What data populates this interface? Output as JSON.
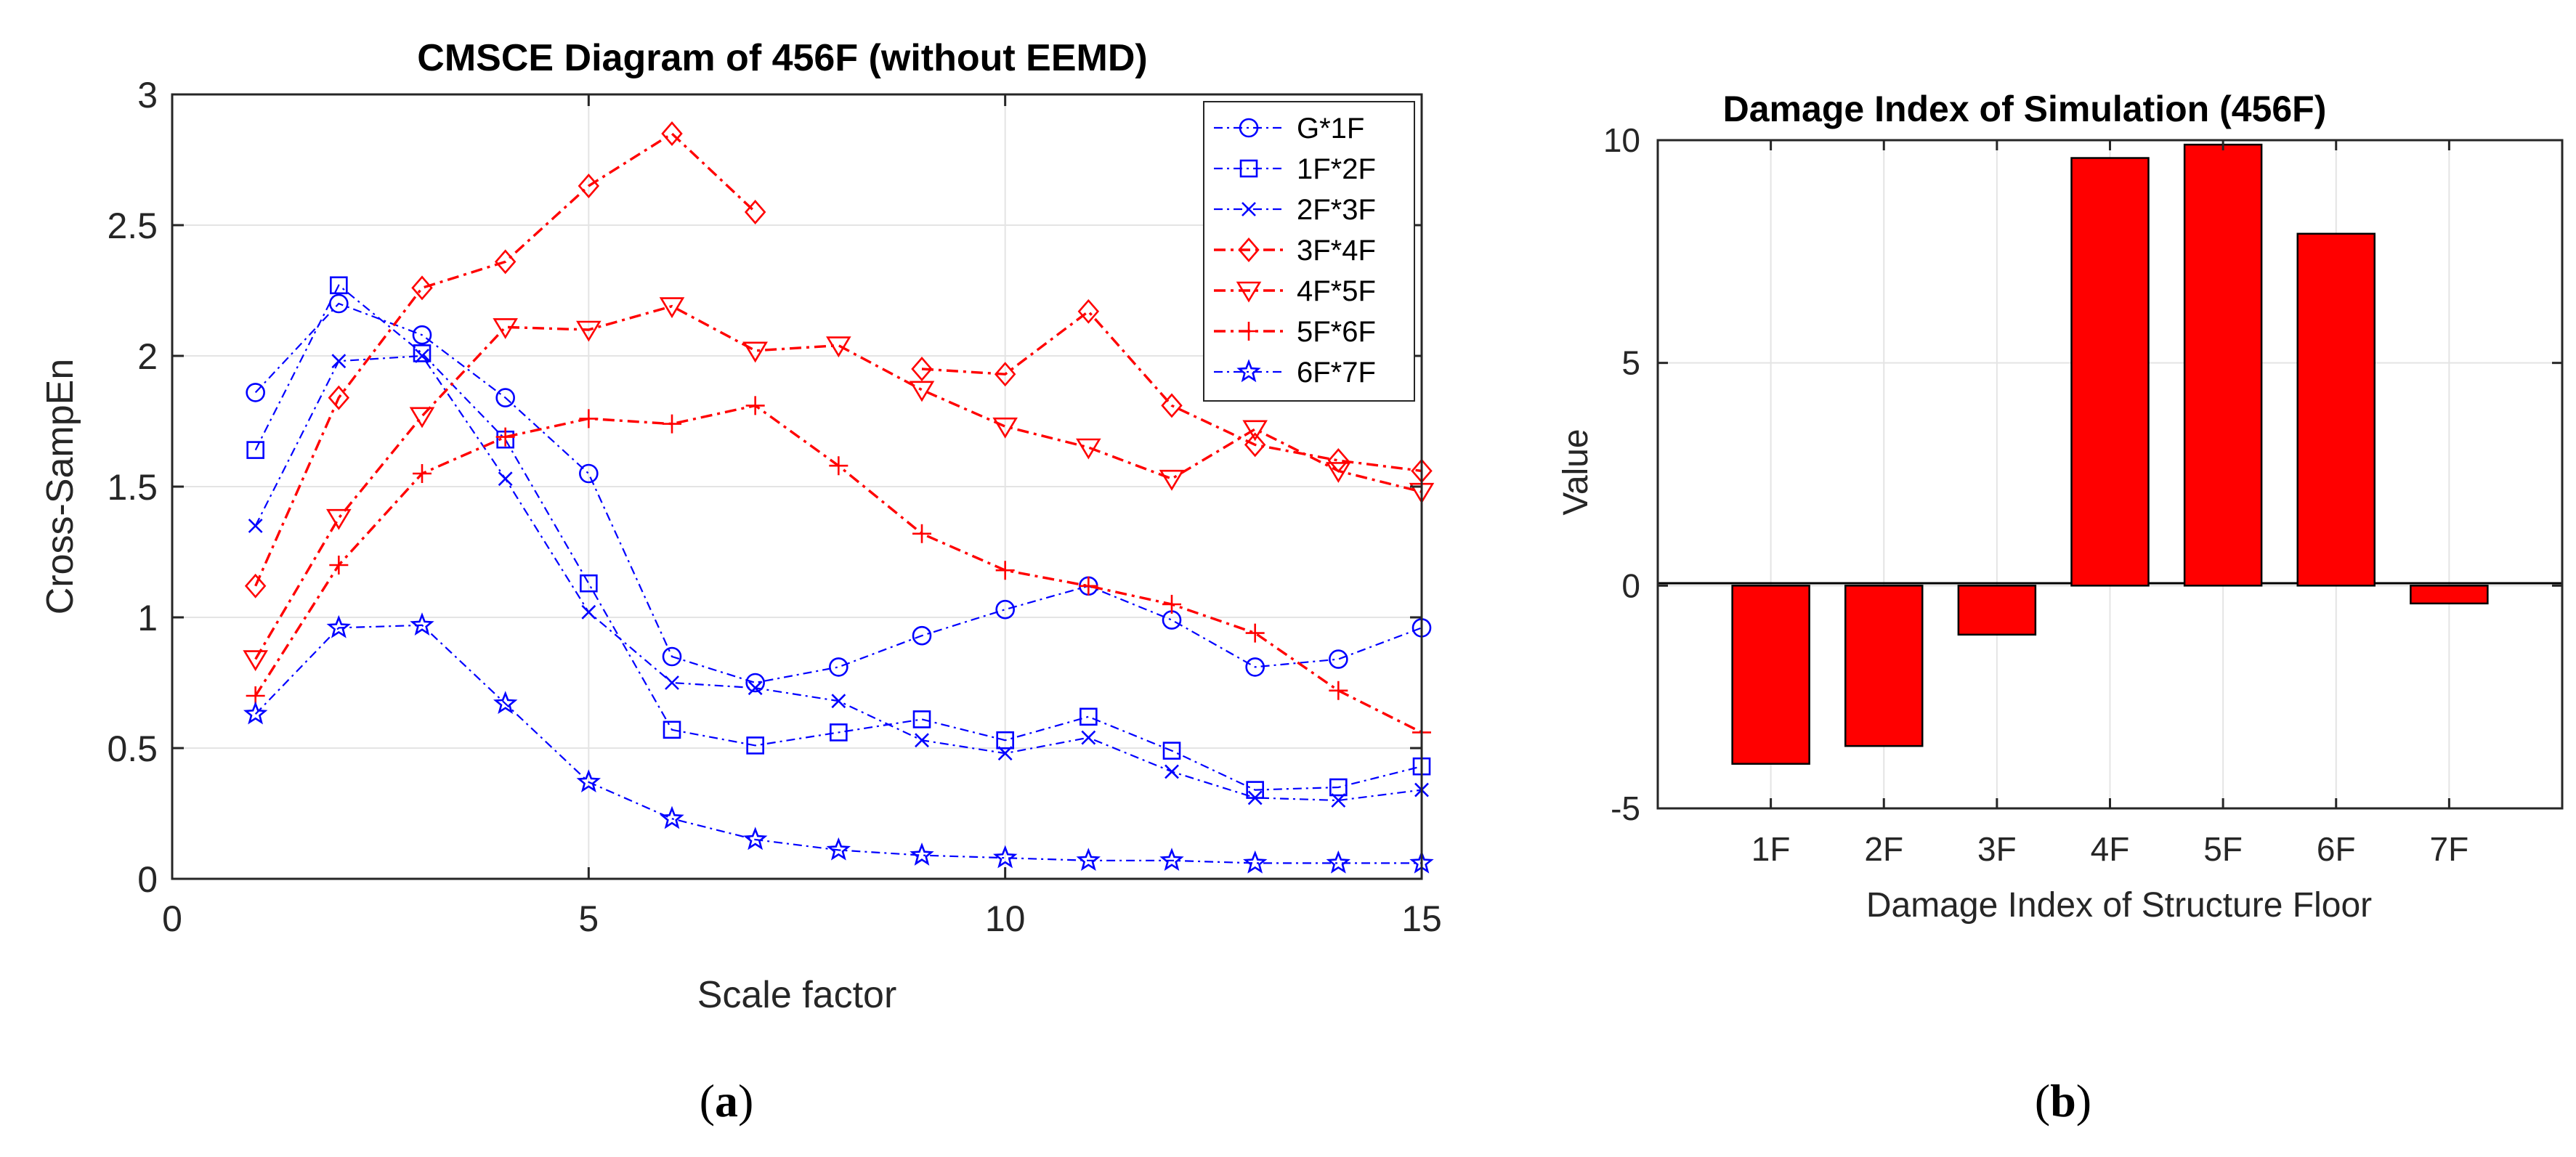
{
  "chart_data": [
    {
      "type": "line",
      "panel": "(a)",
      "title": "CMSCE Diagram of 456F (without EEMD)",
      "xlabel": "Scale factor",
      "ylabel": "Cross-SampEn",
      "xlim": [
        0,
        15
      ],
      "ylim": [
        0,
        3
      ],
      "xticks": [
        0,
        5,
        10,
        15
      ],
      "yticks": [
        0,
        0.5,
        1,
        1.5,
        2,
        2.5,
        3
      ],
      "ytick_labels": [
        "0",
        "0.5",
        "1",
        "1.5",
        "2",
        "2.5",
        "3"
      ],
      "grid": true,
      "legend_position": "top-right",
      "series": [
        {
          "name": "G*1F",
          "color": "#0000ff",
          "marker": "circle",
          "x": [
            1,
            2,
            3,
            4,
            5,
            6,
            7,
            8,
            9,
            10,
            11,
            12,
            13,
            14,
            15
          ],
          "values": [
            1.86,
            2.2,
            2.08,
            1.84,
            1.55,
            0.85,
            0.75,
            0.81,
            0.93,
            1.03,
            1.12,
            0.99,
            0.81,
            0.84,
            0.96
          ]
        },
        {
          "name": "1F*2F",
          "color": "#0000ff",
          "marker": "square",
          "x": [
            1,
            2,
            3,
            4,
            5,
            6,
            7,
            8,
            9,
            10,
            11,
            12,
            13,
            14,
            15
          ],
          "values": [
            1.64,
            2.27,
            2.01,
            1.68,
            1.13,
            0.57,
            0.51,
            0.56,
            0.61,
            0.53,
            0.62,
            0.49,
            0.34,
            0.35,
            0.43
          ]
        },
        {
          "name": "2F*3F",
          "color": "#0000ff",
          "marker": "x",
          "x": [
            1,
            2,
            3,
            4,
            5,
            6,
            7,
            8,
            9,
            10,
            11,
            12,
            13,
            14,
            15
          ],
          "values": [
            1.35,
            1.98,
            2.0,
            1.53,
            1.02,
            0.75,
            0.73,
            0.68,
            0.53,
            0.48,
            0.54,
            0.41,
            0.31,
            0.3,
            0.34
          ]
        },
        {
          "name": "3F*4F",
          "color": "#ff0000",
          "marker": "diamond",
          "x": [
            1,
            2,
            3,
            4,
            5,
            6,
            7,
            8,
            9,
            10,
            11,
            12,
            13,
            14,
            15
          ],
          "values": [
            1.12,
            1.84,
            2.26,
            2.36,
            2.65,
            2.85,
            2.55,
            null,
            1.95,
            1.93,
            2.17,
            1.81,
            1.66,
            1.6,
            1.56
          ]
        },
        {
          "name": "4F*5F",
          "color": "#ff0000",
          "marker": "triangle-down",
          "x": [
            1,
            2,
            3,
            4,
            5,
            6,
            7,
            8,
            9,
            10,
            11,
            12,
            13,
            14,
            15
          ],
          "values": [
            0.84,
            1.38,
            1.77,
            2.11,
            2.1,
            2.19,
            2.02,
            2.04,
            1.87,
            1.73,
            1.65,
            1.53,
            1.72,
            1.56,
            1.48
          ]
        },
        {
          "name": "5F*6F",
          "color": "#ff0000",
          "marker": "plus",
          "x": [
            1,
            2,
            3,
            4,
            5,
            6,
            7,
            8,
            9,
            10,
            11,
            12,
            13,
            14,
            15
          ],
          "values": [
            0.7,
            1.2,
            1.55,
            1.69,
            1.76,
            1.74,
            1.81,
            1.58,
            1.32,
            1.18,
            1.12,
            1.05,
            0.94,
            0.72,
            0.56
          ]
        },
        {
          "name": "6F*7F",
          "color": "#0000ff",
          "marker": "star",
          "x": [
            1,
            2,
            3,
            4,
            5,
            6,
            7,
            8,
            9,
            10,
            11,
            12,
            13,
            14,
            15
          ],
          "values": [
            0.63,
            0.96,
            0.97,
            0.67,
            0.37,
            0.23,
            0.15,
            0.11,
            0.09,
            0.08,
            0.07,
            0.07,
            0.06,
            0.06,
            0.06
          ]
        }
      ]
    },
    {
      "type": "bar",
      "panel": "(b)",
      "title": "Damage Index of Simulation (456F)",
      "xlabel": "Damage Index of Structure Floor",
      "ylabel": "Value",
      "categories": [
        "1F",
        "2F",
        "3F",
        "4F",
        "5F",
        "6F",
        "7F"
      ],
      "values": [
        -4.0,
        -3.6,
        -1.1,
        9.6,
        9.9,
        7.9,
        -0.4
      ],
      "ylim": [
        -5,
        10
      ],
      "yticks": [
        -5,
        0,
        5,
        10
      ],
      "ytick_labels": [
        "-5",
        "0",
        "5",
        "10"
      ],
      "bar_color": "#ff0000",
      "grid": true
    }
  ],
  "captions": {
    "a": {
      "open": "(",
      "letter": "a",
      "close": ")"
    },
    "b": {
      "open": "(",
      "letter": "b",
      "close": ")"
    }
  }
}
